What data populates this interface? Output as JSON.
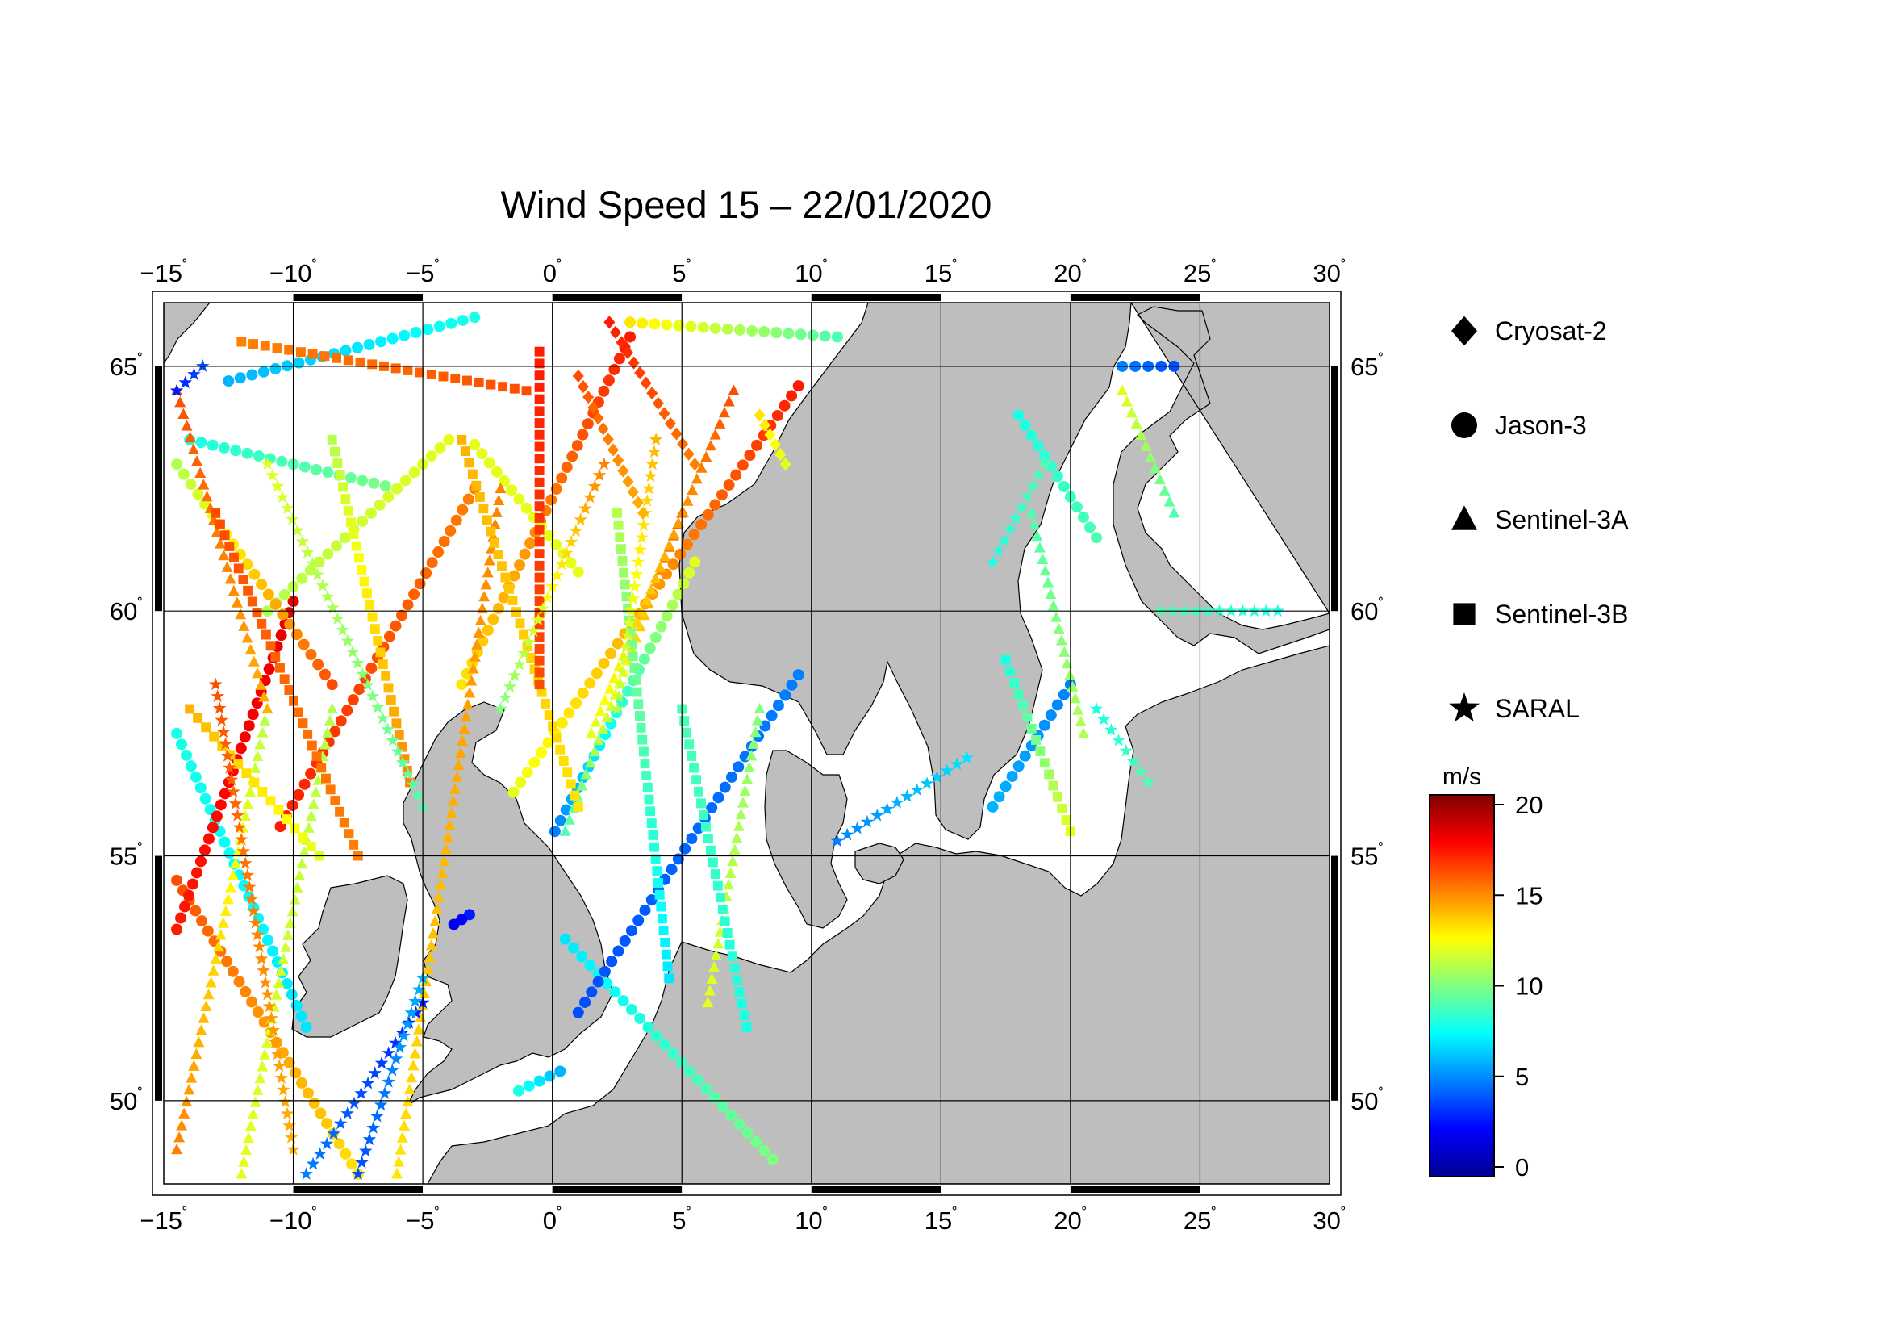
{
  "title": "Wind Speed 15 – 22/01/2020",
  "map": {
    "lon_range": [
      -15,
      30
    ],
    "lat_range": [
      48.3,
      66.3
    ],
    "lon_ticks": [
      -15,
      -10,
      -5,
      0,
      5,
      10,
      15,
      20,
      25,
      30
    ],
    "lat_ticks": [
      50,
      55,
      60,
      65
    ],
    "lon_tick_labels": [
      "−15",
      "−10",
      "−5",
      "0",
      "5",
      "10",
      "15",
      "20",
      "25",
      "30"
    ],
    "lat_tick_labels": [
      "50",
      "55",
      "60",
      "65"
    ],
    "degree_symbol": "˚",
    "land_color": "#bebebe",
    "sea_color": "#ffffff",
    "grid": true
  },
  "legend": {
    "items": [
      {
        "label": "Cryosat-2",
        "symbol": "diamond-icon"
      },
      {
        "label": "Jason-3",
        "symbol": "circle-icon"
      },
      {
        "label": "Sentinel-3A",
        "symbol": "triangle-icon"
      },
      {
        "label": "Sentinel-3B",
        "symbol": "square-icon"
      },
      {
        "label": "SARAL",
        "symbol": "star-icon"
      }
    ]
  },
  "colorbar": {
    "unit": "m/s",
    "min": 0,
    "max": 20,
    "ticks": [
      0,
      5,
      10,
      15,
      20
    ],
    "tick_labels": [
      "0",
      "5",
      "10",
      "15",
      "20"
    ],
    "colors": [
      "#00008f",
      "#0000ff",
      "#0080ff",
      "#00ffff",
      "#80ff80",
      "#ffff00",
      "#ff8000",
      "#ff0000",
      "#800000"
    ]
  },
  "tracks": [
    {
      "satellite": "Jason-3",
      "start": [
        -14.5,
        57.5
      ],
      "end": [
        -9.5,
        51.5
      ],
      "speed": [
        8,
        7
      ]
    },
    {
      "satellite": "Jason-3",
      "start": [
        -14.5,
        54.5
      ],
      "end": [
        -7.5,
        48.5
      ],
      "speed": [
        16,
        13
      ]
    },
    {
      "satellite": "Jason-3",
      "start": [
        -14.5,
        53.5
      ],
      "end": [
        -10,
        60.2
      ],
      "speed": [
        17,
        18
      ]
    },
    {
      "satellite": "Jason-3",
      "start": [
        -10.5,
        55.6
      ],
      "end": [
        -3,
        62.5
      ],
      "speed": [
        17,
        15
      ]
    },
    {
      "satellite": "Jason-3",
      "start": [
        -3.5,
        58.5
      ],
      "end": [
        3,
        65.6
      ],
      "speed": [
        13,
        17
      ]
    },
    {
      "satellite": "Jason-3",
      "start": [
        0.1,
        55.5
      ],
      "end": [
        5.5,
        61
      ],
      "speed": [
        5,
        12
      ]
    },
    {
      "satellite": "Jason-3",
      "start": [
        0.5,
        53.3
      ],
      "end": [
        8.5,
        48.8
      ],
      "speed": [
        7,
        10
      ]
    },
    {
      "satellite": "Jason-3",
      "start": [
        -1.5,
        56.3
      ],
      "end": [
        9.5,
        64.6
      ],
      "speed": [
        12,
        17
      ]
    },
    {
      "satellite": "Jason-3",
      "start": [
        1,
        51.8
      ],
      "end": [
        9.5,
        58.7
      ],
      "speed": [
        4,
        5
      ]
    },
    {
      "satellite": "Jason-3",
      "start": [
        -14,
        63.5
      ],
      "end": [
        -6,
        62.5
      ],
      "speed": [
        8,
        10
      ]
    },
    {
      "satellite": "Jason-3",
      "start": [
        -12.5,
        64.7
      ],
      "end": [
        -3,
        66
      ],
      "speed": [
        6,
        8
      ]
    },
    {
      "satellite": "Jason-3",
      "start": [
        3,
        65.9
      ],
      "end": [
        11,
        65.6
      ],
      "speed": [
        13,
        9
      ]
    },
    {
      "satellite": "Jason-3",
      "start": [
        -11,
        60
      ],
      "end": [
        -4,
        63.5
      ],
      "speed": [
        11,
        12
      ]
    },
    {
      "satellite": "Jason-3",
      "start": [
        -3,
        63.4
      ],
      "end": [
        1,
        60.8
      ],
      "speed": [
        12,
        12
      ]
    },
    {
      "satellite": "Jason-3",
      "start": [
        -8.5,
        58.5
      ],
      "end": [
        -14.5,
        63
      ],
      "speed": [
        16,
        11
      ]
    },
    {
      "satellite": "Jason-3",
      "start": [
        17,
        56
      ],
      "end": [
        20,
        58.5
      ],
      "speed": [
        6,
        5
      ]
    },
    {
      "satellite": "Jason-3",
      "start": [
        21,
        61.5
      ],
      "end": [
        18,
        64
      ],
      "speed": [
        9,
        8
      ]
    },
    {
      "satellite": "Jason-3",
      "start": [
        22,
        65
      ],
      "end": [
        24,
        65
      ],
      "speed": [
        5,
        4
      ]
    },
    {
      "satellite": "Jason-3",
      "start": [
        -1.3,
        50.2
      ],
      "end": [
        0.3,
        50.6
      ],
      "speed": [
        8,
        6
      ]
    },
    {
      "satellite": "Jason-3",
      "start": [
        -3.2,
        53.8
      ],
      "end": [
        -3.8,
        53.6
      ],
      "speed": [
        3,
        2
      ]
    },
    {
      "satellite": "Sentinel-3A",
      "start": [
        -14.5,
        49
      ],
      "end": [
        -11,
        58
      ],
      "speed": [
        15,
        11
      ]
    },
    {
      "satellite": "Sentinel-3A",
      "start": [
        -12,
        48.5
      ],
      "end": [
        -8.5,
        58
      ],
      "speed": [
        12,
        11
      ]
    },
    {
      "satellite": "Sentinel-3A",
      "start": [
        -6,
        48.5
      ],
      "end": [
        -2,
        62.5
      ],
      "speed": [
        13,
        15
      ]
    },
    {
      "satellite": "Sentinel-3A",
      "start": [
        -11,
        58
      ],
      "end": [
        -14.5,
        64.5
      ],
      "speed": [
        14,
        16
      ]
    },
    {
      "satellite": "Sentinel-3A",
      "start": [
        0.5,
        55.5
      ],
      "end": [
        5,
        62
      ],
      "speed": [
        9,
        16
      ]
    },
    {
      "satellite": "Sentinel-3A",
      "start": [
        1.5,
        57.5
      ],
      "end": [
        7,
        64.5
      ],
      "speed": [
        12,
        16
      ]
    },
    {
      "satellite": "Sentinel-3A",
      "start": [
        6,
        52
      ],
      "end": [
        8,
        58
      ],
      "speed": [
        12,
        10
      ]
    },
    {
      "satellite": "Sentinel-3A",
      "start": [
        18.5,
        62
      ],
      "end": [
        20.5,
        57.5
      ],
      "speed": [
        9,
        11
      ]
    },
    {
      "satellite": "Sentinel-3A",
      "start": [
        22,
        64.5
      ],
      "end": [
        24,
        62
      ],
      "speed": [
        12,
        9
      ]
    },
    {
      "satellite": "Sentinel-3B",
      "start": [
        -14,
        58
      ],
      "end": [
        -9,
        55
      ],
      "speed": [
        14,
        12
      ]
    },
    {
      "satellite": "Sentinel-3B",
      "start": [
        -13,
        62
      ],
      "end": [
        -7.5,
        55
      ],
      "speed": [
        16,
        15
      ]
    },
    {
      "satellite": "Sentinel-3B",
      "start": [
        -8.5,
        63.5
      ],
      "end": [
        -5.5,
        56.5
      ],
      "speed": [
        11,
        15
      ]
    },
    {
      "satellite": "Sentinel-3B",
      "start": [
        -3.5,
        63.5
      ],
      "end": [
        1,
        56
      ],
      "speed": [
        14,
        13
      ]
    },
    {
      "satellite": "Sentinel-3B",
      "start": [
        2.5,
        62
      ],
      "end": [
        4.5,
        52.5
      ],
      "speed": [
        11,
        7
      ]
    },
    {
      "satellite": "Sentinel-3B",
      "start": [
        5,
        58
      ],
      "end": [
        7.5,
        51.5
      ],
      "speed": [
        9,
        8
      ]
    },
    {
      "satellite": "Sentinel-3B",
      "start": [
        -0.5,
        65.3
      ],
      "end": [
        -0.5,
        58.5
      ],
      "speed": [
        17,
        16
      ]
    },
    {
      "satellite": "Sentinel-3B",
      "start": [
        17.5,
        59
      ],
      "end": [
        20,
        55.5
      ],
      "speed": [
        8,
        12
      ]
    },
    {
      "satellite": "Sentinel-3B",
      "start": [
        -12,
        65.5
      ],
      "end": [
        -1,
        64.5
      ],
      "speed": [
        15,
        16
      ]
    },
    {
      "satellite": "SARAL",
      "start": [
        -13,
        58.5
      ],
      "end": [
        -10,
        49
      ],
      "speed": [
        16,
        14
      ]
    },
    {
      "satellite": "SARAL",
      "start": [
        -5,
        52
      ],
      "end": [
        -9.5,
        48.5
      ],
      "speed": [
        3,
        5
      ]
    },
    {
      "satellite": "SARAL",
      "start": [
        -7.5,
        48.5
      ],
      "end": [
        -5,
        52.5
      ],
      "speed": [
        4,
        6
      ]
    },
    {
      "satellite": "SARAL",
      "start": [
        -11,
        63
      ],
      "end": [
        -5,
        56
      ],
      "speed": [
        12,
        9
      ]
    },
    {
      "satellite": "SARAL",
      "start": [
        -2,
        58
      ],
      "end": [
        2,
        63
      ],
      "speed": [
        10,
        15
      ]
    },
    {
      "satellite": "SARAL",
      "start": [
        4,
        63.5
      ],
      "end": [
        2.5,
        58
      ],
      "speed": [
        14,
        11
      ]
    },
    {
      "satellite": "SARAL",
      "start": [
        11,
        55.3
      ],
      "end": [
        16,
        57
      ],
      "speed": [
        5,
        7
      ]
    },
    {
      "satellite": "SARAL",
      "start": [
        17,
        61
      ],
      "end": [
        19,
        63
      ],
      "speed": [
        8,
        9
      ]
    },
    {
      "satellite": "SARAL",
      "start": [
        21,
        58
      ],
      "end": [
        23,
        56.5
      ],
      "speed": [
        8,
        9
      ]
    },
    {
      "satellite": "SARAL",
      "start": [
        23.5,
        60
      ],
      "end": [
        28,
        60
      ],
      "speed": [
        9,
        8
      ]
    },
    {
      "satellite": "SARAL",
      "start": [
        -14.5,
        64.5
      ],
      "end": [
        -13.5,
        65
      ],
      "speed": [
        3,
        4
      ]
    },
    {
      "satellite": "Cryosat-2",
      "start": [
        2.2,
        65.9
      ],
      "end": [
        5.5,
        63
      ],
      "speed": [
        17,
        15
      ]
    },
    {
      "satellite": "Cryosat-2",
      "start": [
        1,
        64.8
      ],
      "end": [
        3.5,
        62
      ],
      "speed": [
        16,
        14
      ]
    },
    {
      "satellite": "Cryosat-2",
      "start": [
        8,
        64
      ],
      "end": [
        9,
        63
      ],
      "speed": [
        13,
        12
      ]
    }
  ]
}
